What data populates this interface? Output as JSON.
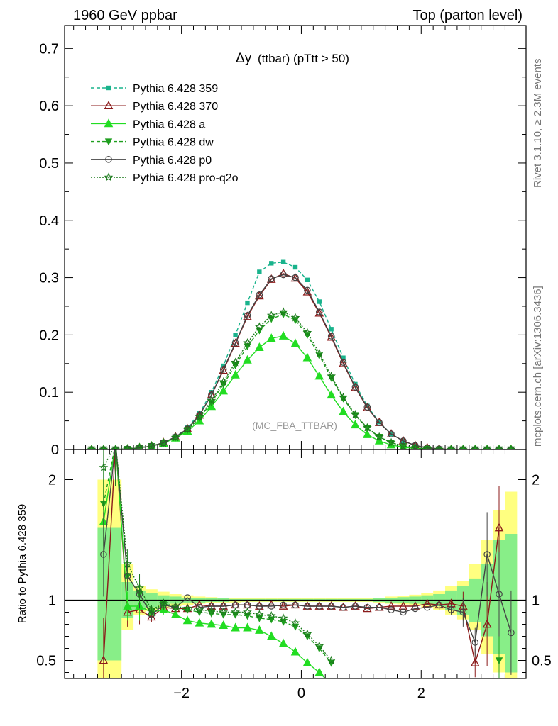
{
  "header": {
    "left_label": "1960 GeV ppbar",
    "right_label": "Top (parton level)"
  },
  "side_labels": {
    "rivet": "Rivet 3.1.10, ≥ 2.3M events",
    "mcplots": "mcplots.cern.ch [arXiv:1306.3436]"
  },
  "plot_title_main": "Δy",
  "plot_title_detail": "(ttbar) (pTtt > 50)",
  "analysis_label": "(MC_FBA_TTBAR)",
  "ratio_ylabel": "Ratio to Pythia 6.428 359",
  "chart_data": [
    {
      "type": "line",
      "panel": "main",
      "xlim": [
        -3.95,
        3.75
      ],
      "ylim": [
        0,
        0.74
      ],
      "x_ticks": [
        -2,
        0,
        2
      ],
      "y_ticks": [
        0,
        0.1,
        0.2,
        0.3,
        0.4,
        0.5,
        0.6,
        0.7
      ],
      "y_tick_labels": [
        "0",
        "0.1",
        "0.2",
        "0.3",
        "0.4",
        "0.5",
        "0.6",
        "0.7"
      ],
      "x": [
        -3.5,
        -3.3,
        -3.1,
        -2.9,
        -2.7,
        -2.5,
        -2.3,
        -2.1,
        -1.9,
        -1.7,
        -1.5,
        -1.3,
        -1.1,
        -0.9,
        -0.7,
        -0.5,
        -0.3,
        -0.1,
        0.1,
        0.3,
        0.5,
        0.7,
        0.9,
        1.1,
        1.3,
        1.5,
        1.7,
        1.9,
        2.1,
        2.3,
        2.5,
        2.7,
        2.9,
        3.1,
        3.3,
        3.5
      ],
      "series": [
        {
          "name": "Pythia 6.428 359",
          "color": "#19b38c",
          "dash": "5,3",
          "marker": "square",
          "values": [
            0,
            0,
            0,
            0.001,
            0.003,
            0.006,
            0.012,
            0.022,
            0.038,
            0.063,
            0.1,
            0.146,
            0.2,
            0.256,
            0.31,
            0.325,
            0.327,
            0.318,
            0.296,
            0.258,
            0.21,
            0.16,
            0.114,
            0.076,
            0.048,
            0.027,
            0.015,
            0.007,
            0.003,
            0.001,
            0,
            0,
            0,
            0,
            0,
            0
          ]
        },
        {
          "name": "Pythia 6.428 370",
          "color": "#8b1a1a",
          "dash": "",
          "marker": "triangle-open",
          "values": [
            0,
            0,
            0,
            0.001,
            0.003,
            0.006,
            0.012,
            0.022,
            0.036,
            0.06,
            0.095,
            0.138,
            0.185,
            0.232,
            0.268,
            0.297,
            0.307,
            0.299,
            0.275,
            0.238,
            0.196,
            0.15,
            0.108,
            0.073,
            0.047,
            0.027,
            0.015,
            0.007,
            0.003,
            0.001,
            0,
            0,
            0,
            0,
            0,
            0
          ]
        },
        {
          "name": "Pythia 6.428 a",
          "color": "#22dd22",
          "dash": "",
          "marker": "triangle",
          "values": [
            0,
            0,
            0,
            0.001,
            0.003,
            0.006,
            0.011,
            0.02,
            0.032,
            0.05,
            0.075,
            0.102,
            0.13,
            0.156,
            0.178,
            0.194,
            0.198,
            0.185,
            0.16,
            0.128,
            0.095,
            0.066,
            0.043,
            0.026,
            0.015,
            0.008,
            0.004,
            0.002,
            0.001,
            0,
            0,
            0,
            0,
            0,
            0,
            0
          ]
        },
        {
          "name": "Pythia 6.428 dw",
          "color": "#1e9e1e",
          "dash": "5,3",
          "marker": "triangle-down",
          "values": [
            0,
            0,
            0,
            0.001,
            0.003,
            0.006,
            0.011,
            0.021,
            0.034,
            0.055,
            0.082,
            0.114,
            0.147,
            0.18,
            0.208,
            0.228,
            0.236,
            0.226,
            0.2,
            0.164,
            0.125,
            0.089,
            0.06,
            0.037,
            0.022,
            0.012,
            0.006,
            0.003,
            0.001,
            0,
            0,
            0,
            0,
            0,
            0,
            0
          ]
        },
        {
          "name": "Pythia 6.428 p0",
          "color": "#444444",
          "dash": "",
          "marker": "circle-open",
          "values": [
            0,
            0,
            0,
            0.001,
            0.003,
            0.006,
            0.012,
            0.022,
            0.036,
            0.06,
            0.095,
            0.14,
            0.186,
            0.234,
            0.27,
            0.298,
            0.305,
            0.3,
            0.278,
            0.24,
            0.198,
            0.152,
            0.109,
            0.074,
            0.047,
            0.027,
            0.015,
            0.007,
            0.003,
            0.001,
            0,
            0,
            0,
            0,
            0,
            0
          ]
        },
        {
          "name": "Pythia 6.428 pro-q2o",
          "color": "#1b7a1b",
          "dash": "2,2",
          "marker": "star-open",
          "values": [
            0,
            0,
            0,
            0.001,
            0.003,
            0.006,
            0.011,
            0.021,
            0.035,
            0.057,
            0.085,
            0.118,
            0.152,
            0.186,
            0.214,
            0.234,
            0.24,
            0.23,
            0.204,
            0.168,
            0.128,
            0.091,
            0.061,
            0.038,
            0.022,
            0.012,
            0.006,
            0.003,
            0.001,
            0,
            0,
            0,
            0,
            0,
            0,
            0
          ]
        }
      ]
    },
    {
      "type": "line",
      "panel": "ratio",
      "ylabel": "Ratio to Pythia 6.428 359",
      "xlim": [
        -3.95,
        3.75
      ],
      "ylim": [
        0.35,
        2.25
      ],
      "x_ticks": [
        -2,
        0,
        2
      ],
      "x_tick_labels": [
        "−2",
        "0",
        "2"
      ],
      "y_ticks": [
        0.5,
        1,
        2
      ],
      "y_tick_labels": [
        "0.5",
        "1",
        "2"
      ],
      "x": [
        -3.3,
        -3.1,
        -2.9,
        -2.7,
        -2.5,
        -2.3,
        -2.1,
        -1.9,
        -1.7,
        -1.5,
        -1.3,
        -1.1,
        -0.9,
        -0.7,
        -0.5,
        -0.3,
        -0.1,
        0.1,
        0.3,
        0.5,
        0.7,
        0.9,
        1.1,
        1.3,
        1.5,
        1.7,
        1.9,
        2.1,
        2.3,
        2.5,
        2.7,
        2.9,
        3.1,
        3.3,
        3.5
      ],
      "bin_edges": [
        -3.4,
        -3.0,
        -2.8,
        -2.6,
        -2.4,
        -2.2,
        -2.0,
        -1.8,
        -1.6,
        -1.4,
        -1.2,
        -1.0,
        -0.8,
        -0.6,
        -0.4,
        -0.2,
        0.0,
        0.2,
        0.4,
        0.6,
        0.8,
        1.0,
        1.2,
        1.4,
        1.6,
        1.8,
        2.0,
        2.2,
        2.4,
        2.6,
        2.8,
        3.0,
        3.2,
        3.4,
        3.6
      ],
      "band_green": [
        [
          0.5,
          1.6
        ],
        [
          0.85,
          1.15
        ],
        [
          0.92,
          1.08
        ],
        [
          0.94,
          1.06
        ],
        [
          0.96,
          1.04
        ],
        [
          0.97,
          1.03
        ],
        [
          0.98,
          1.02
        ],
        [
          0.98,
          1.02
        ],
        [
          0.985,
          1.015
        ],
        [
          0.985,
          1.015
        ],
        [
          0.99,
          1.01
        ],
        [
          0.99,
          1.01
        ],
        [
          0.99,
          1.01
        ],
        [
          0.99,
          1.01
        ],
        [
          0.99,
          1.01
        ],
        [
          0.99,
          1.01
        ],
        [
          0.99,
          1.01
        ],
        [
          0.99,
          1.01
        ],
        [
          0.99,
          1.01
        ],
        [
          0.99,
          1.01
        ],
        [
          0.99,
          1.01
        ],
        [
          0.99,
          1.01
        ],
        [
          0.985,
          1.015
        ],
        [
          0.98,
          1.02
        ],
        [
          0.975,
          1.025
        ],
        [
          0.97,
          1.03
        ],
        [
          0.96,
          1.04
        ],
        [
          0.95,
          1.05
        ],
        [
          0.92,
          1.08
        ],
        [
          0.88,
          1.12
        ],
        [
          0.82,
          1.18
        ],
        [
          0.7,
          1.3
        ],
        [
          0.55,
          1.5
        ],
        [
          0.4,
          1.55
        ]
      ],
      "band_yellow": [
        [
          0.35,
          2.0
        ],
        [
          0.75,
          1.3
        ],
        [
          0.88,
          1.12
        ],
        [
          0.91,
          1.09
        ],
        [
          0.93,
          1.07
        ],
        [
          0.95,
          1.05
        ],
        [
          0.96,
          1.04
        ],
        [
          0.97,
          1.03
        ],
        [
          0.975,
          1.025
        ],
        [
          0.98,
          1.02
        ],
        [
          0.98,
          1.02
        ],
        [
          0.985,
          1.015
        ],
        [
          0.985,
          1.015
        ],
        [
          0.985,
          1.015
        ],
        [
          0.985,
          1.015
        ],
        [
          0.985,
          1.015
        ],
        [
          0.985,
          1.015
        ],
        [
          0.985,
          1.015
        ],
        [
          0.985,
          1.015
        ],
        [
          0.985,
          1.015
        ],
        [
          0.985,
          1.015
        ],
        [
          0.985,
          1.015
        ],
        [
          0.98,
          1.02
        ],
        [
          0.97,
          1.03
        ],
        [
          0.965,
          1.035
        ],
        [
          0.955,
          1.045
        ],
        [
          0.94,
          1.06
        ],
        [
          0.92,
          1.08
        ],
        [
          0.88,
          1.12
        ],
        [
          0.84,
          1.16
        ],
        [
          0.75,
          1.3
        ],
        [
          0.55,
          1.5
        ],
        [
          0.4,
          1.75
        ],
        [
          0.35,
          1.9
        ]
      ],
      "series": [
        {
          "name": "Pythia 6.428 370",
          "color": "#8b1a1a",
          "dash": "",
          "marker": "triangle-open",
          "values": [
            0.5,
            2.3,
            0.9,
            0.92,
            0.86,
            0.94,
            0.93,
            0.93,
            0.96,
            0.95,
            0.95,
            0.96,
            0.96,
            0.95,
            0.96,
            0.95,
            0.96,
            0.95,
            0.95,
            0.95,
            0.94,
            0.95,
            0.93,
            0.94,
            0.95,
            0.95,
            0.95,
            0.97,
            0.96,
            0.97,
            0.95,
            0.48,
            0.8,
            1.6,
            null
          ]
        },
        {
          "name": "Pythia 6.428 a",
          "color": "#22dd22",
          "dash": "",
          "marker": "triangle",
          "values": [
            1.65,
            2.3,
            0.95,
            0.95,
            0.9,
            0.92,
            0.88,
            0.83,
            0.81,
            0.8,
            0.79,
            0.77,
            0.77,
            0.75,
            0.7,
            0.64,
            0.57,
            0.48,
            0.4,
            0.3,
            null,
            null,
            null,
            null,
            null,
            null,
            null,
            null,
            null,
            null,
            null,
            null,
            null,
            null,
            null
          ]
        },
        {
          "name": "Pythia 6.428 dw",
          "color": "#1e9e1e",
          "dash": "5,3",
          "marker": "triangle-down",
          "values": [
            1.8,
            2.3,
            1.2,
            1.05,
            0.9,
            0.97,
            0.93,
            0.92,
            0.9,
            0.89,
            0.88,
            0.88,
            0.87,
            0.85,
            0.84,
            0.82,
            0.78,
            0.7,
            0.6,
            0.48,
            null,
            null,
            null,
            null,
            null,
            null,
            null,
            null,
            null,
            null,
            null,
            null,
            null,
            0.5,
            null
          ]
        },
        {
          "name": "Pythia 6.428 p0",
          "color": "#444444",
          "dash": "",
          "marker": "circle-open",
          "values": [
            1.38,
            2.3,
            1.2,
            1.05,
            0.88,
            0.96,
            0.94,
            1.02,
            0.94,
            0.95,
            0.95,
            0.96,
            0.96,
            0.95,
            0.95,
            0.96,
            0.96,
            0.95,
            0.95,
            0.95,
            0.94,
            0.95,
            0.94,
            0.94,
            0.92,
            0.9,
            0.93,
            0.94,
            0.96,
            0.92,
            0.9,
            0.65,
            1.38,
            1.05,
            0.73
          ]
        },
        {
          "name": "Pythia 6.428 pro-q2o",
          "color": "#1b7a1b",
          "dash": "2,2",
          "marker": "star-open",
          "values": [
            2.1,
            2.3,
            1.3,
            1.1,
            0.92,
            0.97,
            0.95,
            0.93,
            0.92,
            0.91,
            0.9,
            0.9,
            0.9,
            0.88,
            0.87,
            0.85,
            0.81,
            0.72,
            0.62,
            0.5,
            null,
            null,
            null,
            null,
            null,
            null,
            null,
            null,
            null,
            null,
            null,
            null,
            null,
            null,
            null
          ]
        }
      ]
    }
  ]
}
